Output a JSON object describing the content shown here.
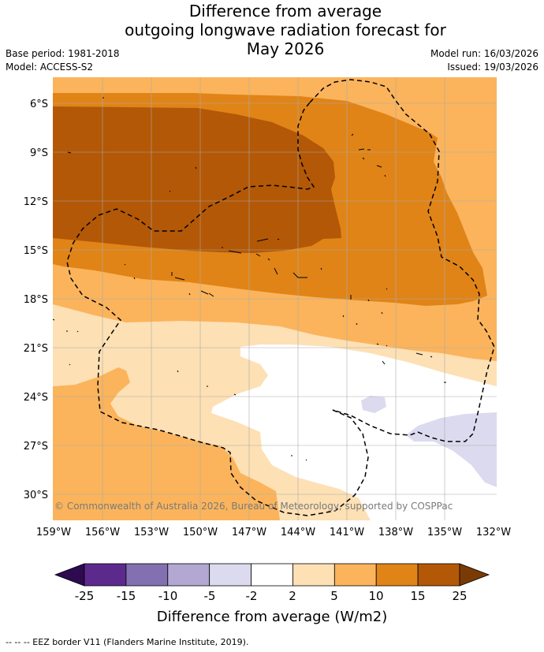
{
  "title": {
    "line1": "Difference from average",
    "line2": "outgoing longwave radiation forecast for",
    "line3": "May 2026"
  },
  "meta": {
    "base_period": "Base period: 1981-2018",
    "model": "Model: ACCESS-S2",
    "model_run": "Model run: 16/03/2026",
    "issued": "Issued: 19/03/2026"
  },
  "map": {
    "lat_labels": [
      "6°S",
      "9°S",
      "12°S",
      "15°S",
      "18°S",
      "21°S",
      "24°S",
      "27°S",
      "30°S"
    ],
    "lon_labels": [
      "159°W",
      "156°W",
      "153°W",
      "150°W",
      "147°W",
      "144°W",
      "141°W",
      "138°W",
      "135°W",
      "132°W"
    ],
    "copyright": "© Commonwealth of Australia 2026, Bureau of Meteorology, supported by COSPPac"
  },
  "colorbar": {
    "ticks": [
      "-25",
      "-15",
      "-10",
      "-5",
      "-2",
      "2",
      "5",
      "10",
      "15",
      "25"
    ],
    "colors": [
      "#5c2a8c",
      "#8270b0",
      "#b2a8d2",
      "#dcdaee",
      "#ffffff",
      "#fde0b4",
      "#fbb45c",
      "#e08418",
      "#b35806"
    ],
    "low_end_color": "#2e0a50",
    "high_end_color": "#7a3a05",
    "label": "Difference from average (W/m2)"
  },
  "footnote": "--  --  -- EEZ border V11 (Flanders Marine Institute, 2019)."
}
